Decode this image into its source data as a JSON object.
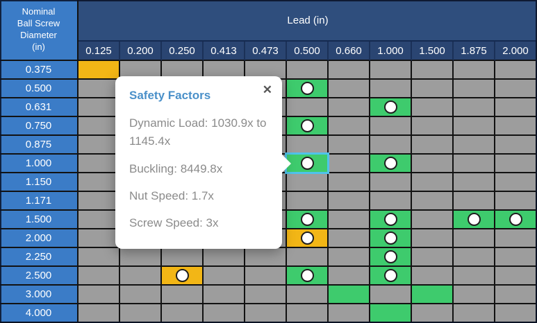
{
  "table": {
    "corner_header": "Nominal Ball Screw Diameter (in)",
    "column_group_label": "Lead (in)",
    "column_headers": [
      "0.125",
      "0.200",
      "0.250",
      "0.413",
      "0.473",
      "0.500",
      "0.660",
      "1.000",
      "1.500",
      "1.875",
      "2.000"
    ],
    "row_headers": [
      "0.375",
      "0.500",
      "0.631",
      "0.750",
      "0.875",
      "1.000",
      "1.150",
      "1.171",
      "1.500",
      "2.000",
      "2.250",
      "2.500",
      "3.000",
      "4.000"
    ],
    "cells": [
      {
        "row": "0.375",
        "col": "0.125",
        "color": "yellow",
        "marker": false,
        "selected": false
      },
      {
        "row": "0.500",
        "col": "0.500",
        "color": "green",
        "marker": true,
        "selected": false
      },
      {
        "row": "0.631",
        "col": "1.000",
        "color": "green",
        "marker": true,
        "selected": false
      },
      {
        "row": "0.750",
        "col": "0.500",
        "color": "green",
        "marker": true,
        "selected": false
      },
      {
        "row": "1.000",
        "col": "0.500",
        "color": "green",
        "marker": true,
        "selected": true
      },
      {
        "row": "1.000",
        "col": "1.000",
        "color": "green",
        "marker": true,
        "selected": false
      },
      {
        "row": "1.500",
        "col": "0.500",
        "color": "green",
        "marker": true,
        "selected": false
      },
      {
        "row": "1.500",
        "col": "1.000",
        "color": "green",
        "marker": true,
        "selected": false
      },
      {
        "row": "1.500",
        "col": "1.875",
        "color": "green",
        "marker": true,
        "selected": false
      },
      {
        "row": "1.500",
        "col": "2.000",
        "color": "green",
        "marker": true,
        "selected": false
      },
      {
        "row": "2.000",
        "col": "0.500",
        "color": "yellow",
        "marker": true,
        "selected": false
      },
      {
        "row": "2.000",
        "col": "1.000",
        "color": "green",
        "marker": true,
        "selected": false
      },
      {
        "row": "2.250",
        "col": "1.000",
        "color": "green",
        "marker": true,
        "selected": false
      },
      {
        "row": "2.500",
        "col": "0.250",
        "color": "yellow",
        "marker": true,
        "selected": false
      },
      {
        "row": "2.500",
        "col": "0.500",
        "color": "green",
        "marker": true,
        "selected": false
      },
      {
        "row": "2.500",
        "col": "1.000",
        "color": "green",
        "marker": true,
        "selected": false
      },
      {
        "row": "3.000",
        "col": "0.660",
        "color": "green",
        "marker": false,
        "selected": false
      },
      {
        "row": "3.000",
        "col": "1.500",
        "color": "green",
        "marker": false,
        "selected": false
      },
      {
        "row": "4.000",
        "col": "1.000",
        "color": "green",
        "marker": false,
        "selected": false
      }
    ]
  },
  "popup": {
    "title": "Safety Factors",
    "close_icon": "✕",
    "lines": [
      "Dynamic Load: 1030.9x to 1145.4x",
      "Buckling: 8449.8x",
      "Nut Speed: 1.7x",
      "Screw Speed: 3x"
    ]
  },
  "colors": {
    "blue": "#3b7cc7",
    "navyBand": "#2f4e7d",
    "navyCell": "#2a4572",
    "gray": "#9d9d9d",
    "green": "#3ecb6d",
    "yellow": "#f2b616",
    "cyan": "#4fc3ea",
    "line": "#121212",
    "titleBlue": "#4a90c9",
    "textGray": "#8b8b8b"
  }
}
